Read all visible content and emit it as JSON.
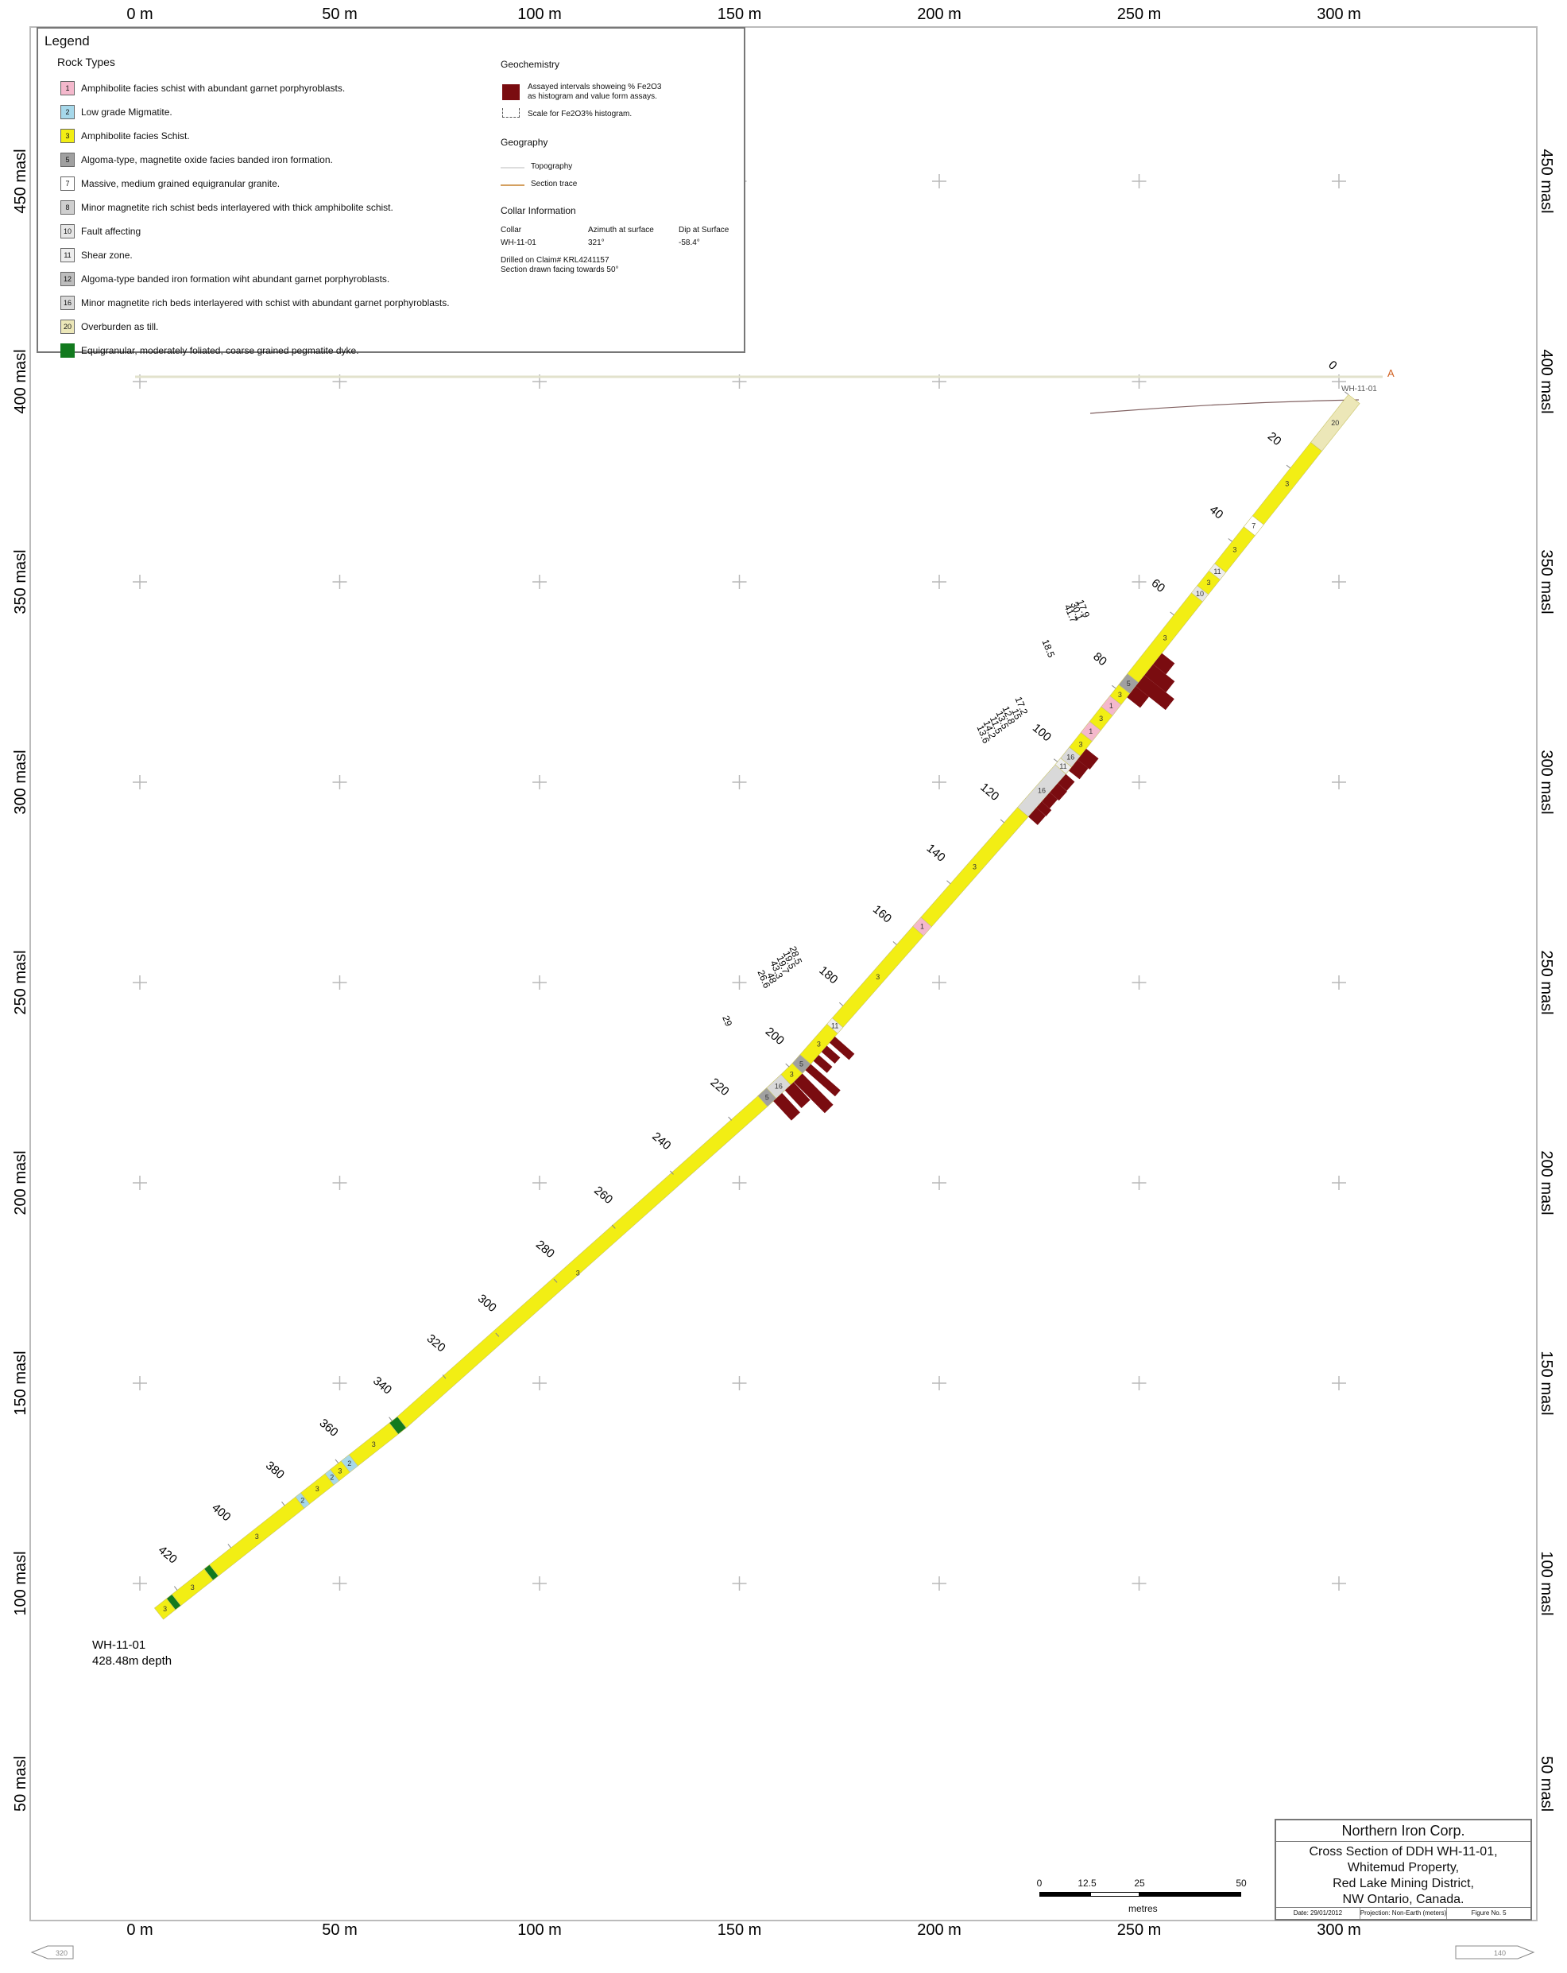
{
  "axes": {
    "x_labels": [
      "0 m",
      "50 m",
      "100 m",
      "150 m",
      "200 m",
      "250 m",
      "300 m"
    ],
    "y_labels": [
      "450 masl",
      "400 masl",
      "350 masl",
      "300 masl",
      "250 masl",
      "200 masl",
      "150 masl",
      "100 masl",
      "50 masl"
    ]
  },
  "legend": {
    "title": "Legend",
    "rock_heading": "Rock Types",
    "rock_types": [
      {
        "code": "1",
        "label": "Amphibolite facies schist with abundant garnet porphyroblasts.",
        "color": "#f4b8cc"
      },
      {
        "code": "2",
        "label": "Low grade Migmatite.",
        "color": "#a6d8ea"
      },
      {
        "code": "3",
        "label": "Amphibolite facies Schist.",
        "color": "#f2ee14"
      },
      {
        "code": "5",
        "label": "Algoma-type, magnetite oxide facies banded iron formation.",
        "color": "#a0a0a0"
      },
      {
        "code": "7",
        "label": "Massive, medium grained equigranular granite.",
        "color": "#ffffff"
      },
      {
        "code": "8",
        "label": "Minor magnetite rich schist beds interlayered with thick amphibolite schist.",
        "color": "#cfcfcf"
      },
      {
        "code": "10",
        "label": "Fault affecting",
        "color": "#e6e6e6"
      },
      {
        "code": "11",
        "label": "Shear zone.",
        "color": "#eeeeee"
      },
      {
        "code": "12",
        "label": "Algoma-type banded iron formation wiht abundant garnet porphyroblasts.",
        "color": "#bdbdbd"
      },
      {
        "code": "16",
        "label": "Minor magnetite rich beds interlayered with schist with abundant garnet porphyroblasts.",
        "color": "#d9d9d9"
      },
      {
        "code": "20",
        "label": "Overburden as till.",
        "color": "#ece7b8"
      },
      {
        "code": "",
        "label": "Equigranular, moderately foliated, coarse grained pegmatite dyke.",
        "color": "#127a1e"
      }
    ],
    "geochem_heading": "Geochemistry",
    "geochem_item_line1": "Assayed intervals showeing % Fe2O3",
    "geochem_item_line2": "as histogram and value form assays.",
    "geochem_scale": "Scale for Fe2O3% histogram.",
    "geography_heading": "Geography",
    "topography": "Topography",
    "section_trace": "Section trace",
    "collar_heading": "Collar Information",
    "collar_col1": "Collar",
    "collar_col2": "Azimuth at surface",
    "collar_col3": "Dip at Surface",
    "collar_val1": "WH-11-01",
    "collar_val2": "321°",
    "collar_val3": "-58.4°",
    "drilled_on": "Drilled on Claim# KRL4241157",
    "facing": "Section drawn facing towards 50°"
  },
  "drillhole": {
    "name": "WH-11-01",
    "end_name": "WH-11-01",
    "end_depth": "428.48m depth",
    "section_label": "A",
    "depth_ticks": [
      "0",
      "20",
      "40",
      "60",
      "80",
      "100",
      "120",
      "140",
      "160",
      "180",
      "200",
      "220",
      "240",
      "260",
      "280",
      "300",
      "320",
      "340",
      "360",
      "380",
      "400",
      "420"
    ],
    "segments": [
      {
        "from": 0,
        "to": 13,
        "code": "20",
        "color": "#ece7b8"
      },
      {
        "from": 13,
        "to": 33,
        "code": "3",
        "color": "#f2ee14"
      },
      {
        "from": 33,
        "to": 36,
        "code": "7",
        "color": "#ffffff"
      },
      {
        "from": 36,
        "to": 46,
        "code": "3",
        "color": "#f2ee14"
      },
      {
        "from": 46,
        "to": 48,
        "code": "11",
        "color": "#eeeeee"
      },
      {
        "from": 48,
        "to": 52,
        "code": "3",
        "color": "#f2ee14"
      },
      {
        "from": 52,
        "to": 54,
        "code": "10",
        "color": "#e6e6e6"
      },
      {
        "from": 54,
        "to": 76,
        "code": "3",
        "color": "#f2ee14"
      },
      {
        "from": 76,
        "to": 79,
        "code": "5",
        "color": "#a0a0a0"
      },
      {
        "from": 79,
        "to": 82,
        "code": "3",
        "color": "#f2ee14"
      },
      {
        "from": 82,
        "to": 85,
        "code": "1",
        "color": "#f4b8cc"
      },
      {
        "from": 85,
        "to": 89,
        "code": "3",
        "color": "#f2ee14"
      },
      {
        "from": 89,
        "to": 92,
        "code": "1",
        "color": "#f4b8cc"
      },
      {
        "from": 92,
        "to": 96,
        "code": "3",
        "color": "#f2ee14"
      },
      {
        "from": 96,
        "to": 99,
        "code": "16",
        "color": "#d9d9d9"
      },
      {
        "from": 99,
        "to": 101,
        "code": "11",
        "color": "#eeeeee"
      },
      {
        "from": 101,
        "to": 115,
        "code": "16",
        "color": "#d9d9d9"
      },
      {
        "from": 115,
        "to": 151,
        "code": "3",
        "color": "#f2ee14"
      },
      {
        "from": 151,
        "to": 154,
        "code": "1",
        "color": "#f4b8cc"
      },
      {
        "from": 154,
        "to": 184,
        "code": "3",
        "color": "#f2ee14"
      },
      {
        "from": 184,
        "to": 186,
        "code": "11",
        "color": "#eeeeee"
      },
      {
        "from": 186,
        "to": 196,
        "code": "3",
        "color": "#f2ee14"
      },
      {
        "from": 196,
        "to": 199,
        "code": "5",
        "color": "#a0a0a0"
      },
      {
        "from": 199,
        "to": 203,
        "code": "3",
        "color": "#f2ee14"
      },
      {
        "from": 203,
        "to": 208,
        "code": "16",
        "color": "#d9d9d9"
      },
      {
        "from": 208,
        "to": 211,
        "code": "5",
        "color": "#a0a0a0"
      },
      {
        "from": 211,
        "to": 338,
        "code": "3",
        "color": "#f2ee14"
      },
      {
        "from": 338,
        "to": 341,
        "code": "",
        "color": "#127a1e"
      },
      {
        "from": 341,
        "to": 356,
        "code": "3",
        "color": "#f2ee14"
      },
      {
        "from": 356,
        "to": 359,
        "code": "2",
        "color": "#a6d8ea"
      },
      {
        "from": 359,
        "to": 363,
        "code": "3",
        "color": "#f2ee14"
      },
      {
        "from": 363,
        "to": 365,
        "code": "2",
        "color": "#a6d8ea"
      },
      {
        "from": 365,
        "to": 374,
        "code": "3",
        "color": "#f2ee14"
      },
      {
        "from": 374,
        "to": 376,
        "code": "2",
        "color": "#a6d8ea"
      },
      {
        "from": 376,
        "to": 408,
        "code": "3",
        "color": "#f2ee14"
      },
      {
        "from": 408,
        "to": 410,
        "code": "",
        "color": "#127a1e"
      },
      {
        "from": 410,
        "to": 422,
        "code": "3",
        "color": "#f2ee14"
      },
      {
        "from": 422,
        "to": 424,
        "code": "",
        "color": "#127a1e"
      },
      {
        "from": 424,
        "to": 428.48,
        "code": "3",
        "color": "#f2ee14"
      }
    ],
    "assays": [
      {
        "from": 68,
        "to": 71,
        "value": 17.9
      },
      {
        "from": 71,
        "to": 74,
        "value": 30.1
      },
      {
        "from": 74,
        "to": 77,
        "value": 41.7
      },
      {
        "from": 77,
        "to": 80,
        "value": 18.5
      },
      {
        "from": 94,
        "to": 97,
        "value": 17.2
      },
      {
        "from": 97,
        "to": 100,
        "value": 15
      },
      {
        "from": 101,
        "to": 104,
        "value": 12.8
      },
      {
        "from": 104,
        "to": 107,
        "value": 13.5
      },
      {
        "from": 107,
        "to": 110,
        "value": 11.5
      },
      {
        "from": 110,
        "to": 112,
        "value": 14.2
      },
      {
        "from": 112,
        "to": 115,
        "value": 13.6
      },
      {
        "from": 187,
        "to": 189,
        "value": 28.5
      },
      {
        "from": 190,
        "to": 192,
        "value": 19.5
      },
      {
        "from": 193,
        "to": 195,
        "value": 19.7
      },
      {
        "from": 196,
        "to": 198,
        "value": 43.3
      },
      {
        "from": 199,
        "to": 202,
        "value": 48
      },
      {
        "from": 202,
        "to": 205,
        "value": 26.6
      },
      {
        "from": 206,
        "to": 209,
        "value": 29
      }
    ]
  },
  "scalebar": {
    "ticks": [
      "0",
      "12.5",
      "25",
      "50"
    ],
    "unit": "metres"
  },
  "title_block": {
    "company": "Northern Iron Corp.",
    "line1": "Cross Section of DDH WH-11-01,",
    "line2": "Whitemud Property,",
    "line3": "Red Lake Mining District,",
    "line4": "NW Ontario, Canada.",
    "date": "Date: 29/01/2012",
    "projection": "Projection: Non-Earth (meters)",
    "figure": "Figure No. 5"
  },
  "arrows": {
    "left": "320",
    "right": "140"
  }
}
